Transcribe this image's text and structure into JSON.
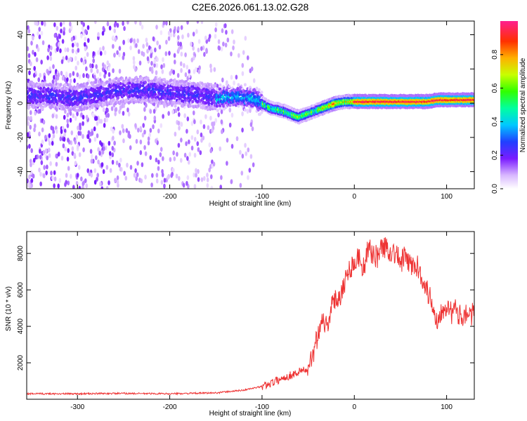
{
  "title": "C2E6.2026.061.13.02.G28",
  "chart_data": [
    {
      "type": "heatmap",
      "xlabel": "Height of straight line (km)",
      "ylabel": "Frequency (Hz)",
      "xlim": [
        -355,
        130
      ],
      "ylim": [
        -50,
        48
      ],
      "x_ticks": [
        "-300",
        "-200",
        "-100",
        "0",
        "100"
      ],
      "y_ticks": [
        "40",
        "20",
        "0",
        "-20",
        "-40"
      ],
      "ridge": {
        "x": [
          -355,
          -300,
          -260,
          -230,
          -200,
          -170,
          -150,
          -130,
          -110,
          -100,
          -90,
          -80,
          -70,
          -60,
          -50,
          -40,
          -30,
          -20,
          -10,
          0,
          20,
          40,
          60,
          80,
          90,
          100,
          110,
          130
        ],
        "y": [
          5,
          3,
          7,
          8,
          6,
          5,
          3,
          4,
          3,
          0,
          -3,
          -4,
          -6,
          -8,
          -6,
          -4,
          -2,
          0,
          1,
          1,
          1,
          1,
          1,
          1,
          2,
          2,
          2,
          2
        ]
      },
      "colorbar": {
        "label": "Normalized spectral amplitude",
        "range": [
          0.0,
          1.0
        ],
        "ticks": [
          "0.0",
          "0.2",
          "0.4",
          "0.6",
          "0.8"
        ]
      }
    },
    {
      "type": "line",
      "xlabel": "Height of straight line (km)",
      "ylabel": "SNR (10 * v/v)",
      "xlim": [
        -355,
        130
      ],
      "ylim": [
        0,
        9200
      ],
      "x_ticks": [
        "-300",
        "-200",
        "-100",
        "0",
        "100"
      ],
      "y_ticks": [
        "2000",
        "4000",
        "6000",
        "8000"
      ],
      "series": [
        {
          "name": "SNR",
          "color": "#ee3333",
          "x": [
            -355,
            -300,
            -250,
            -200,
            -150,
            -120,
            -100,
            -90,
            -80,
            -70,
            -60,
            -55,
            -50,
            -45,
            -40,
            -35,
            -30,
            -25,
            -20,
            -15,
            -10,
            -5,
            0,
            5,
            10,
            15,
            20,
            25,
            30,
            35,
            40,
            45,
            50,
            55,
            60,
            65,
            70,
            75,
            80,
            85,
            90,
            95,
            100,
            105,
            110,
            115,
            120,
            125,
            130
          ],
          "y": [
            300,
            300,
            320,
            300,
            350,
            500,
            700,
            900,
            1100,
            1300,
            1500,
            1700,
            1400,
            2500,
            3500,
            4500,
            4000,
            5000,
            5500,
            5800,
            6500,
            7200,
            7500,
            7800,
            7200,
            8200,
            8000,
            7800,
            8400,
            8300,
            8100,
            8000,
            7500,
            7800,
            7400,
            7300,
            7200,
            6500,
            5800,
            5200,
            4200,
            5000,
            5200,
            4700,
            4900,
            4500,
            4800,
            4600,
            4700
          ]
        }
      ]
    }
  ]
}
